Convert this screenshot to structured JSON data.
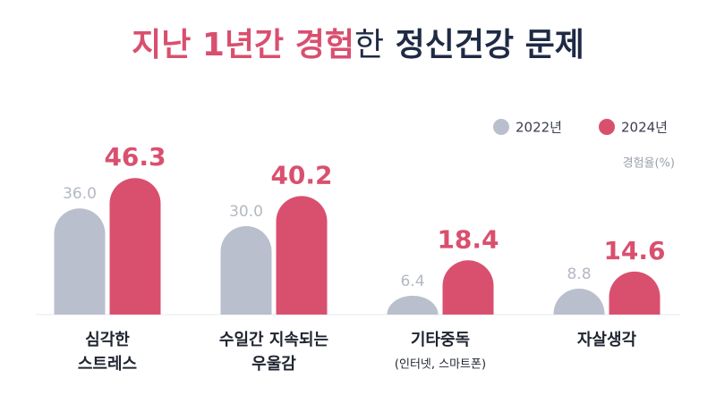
{
  "chart_data": {
    "type": "bar",
    "title": "지난 1년간 경험한 정신건강 문제",
    "unit_label": "경험율(%)",
    "categories": [
      [
        "심각한",
        "스트레스"
      ],
      [
        "수일간 지속되는",
        "우울감"
      ],
      [
        "기타중독",
        "(인터넷, 스마트폰)"
      ],
      [
        "자살생각"
      ]
    ],
    "series": [
      {
        "name": "2022년",
        "color": "#b9bfcc",
        "values": [
          36.0,
          30.0,
          6.4,
          8.8
        ],
        "value_labels": [
          "36.0",
          "30.0",
          "6.4",
          "8.8"
        ]
      },
      {
        "name": "2024년",
        "color": "#d9506e",
        "values": [
          46.3,
          40.2,
          18.4,
          14.6
        ]
      }
    ],
    "legend": "top-right"
  }
}
